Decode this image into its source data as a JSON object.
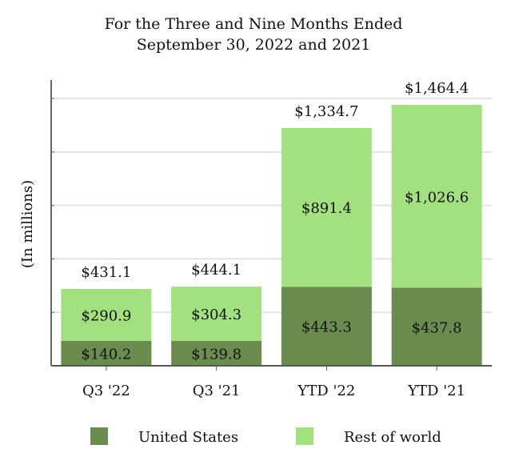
{
  "chart_data": {
    "type": "bar",
    "stacked": true,
    "title": "For the Three and Nine Months Ended",
    "subtitle": "September 30, 2022 and 2021",
    "ylabel": "(In millions)",
    "xlabel": "",
    "categories": [
      "Q3 '22",
      "Q3 '21",
      "YTD '22",
      "YTD '21"
    ],
    "series": [
      {
        "name": "United States",
        "color": "#6a8c4e",
        "values": [
          140.2,
          139.8,
          443.3,
          437.8
        ],
        "labels": [
          "$140.2",
          "$139.8",
          "$443.3",
          "$437.8"
        ]
      },
      {
        "name": "Rest of world",
        "color": "#a3e07f",
        "values": [
          290.9,
          304.3,
          891.4,
          1026.6
        ],
        "labels": [
          "$290.9",
          "$304.3",
          "$891.4",
          "$1,026.6"
        ]
      }
    ],
    "totals": [
      431.1,
      444.1,
      1334.7,
      1464.4
    ],
    "total_labels": [
      "$431.1",
      "$444.1",
      "$1,334.7",
      "$1,464.4"
    ],
    "ylim": [
      0,
      1600
    ],
    "grid": true,
    "legend": "bottom"
  }
}
